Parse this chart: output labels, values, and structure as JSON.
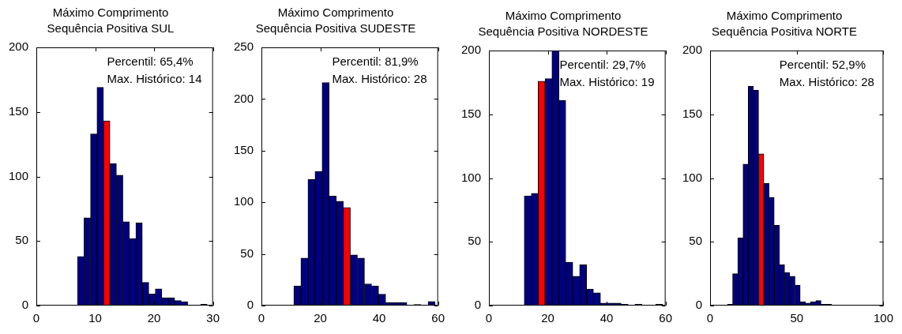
{
  "chart_data": [
    {
      "type": "histogram",
      "title": "Máximo Comprimento",
      "subtitle": "Sequência Positiva SUL",
      "bins": [
        7,
        8.1,
        9.2,
        10.3,
        11.4,
        12.5,
        13.6,
        14.7,
        15.8,
        16.9,
        18,
        19.1,
        20.2,
        21.3,
        22.4,
        23.5,
        24.6,
        25.7,
        26.8,
        27.9,
        29
      ],
      "values": [
        38,
        68,
        133,
        169,
        143,
        110,
        101,
        65,
        52,
        64,
        18,
        9,
        13,
        6,
        6,
        4,
        3,
        0,
        0,
        1
      ],
      "colors": [
        "#000080",
        "#000080",
        "#000080",
        "#000080",
        "#ff0000",
        "#000080",
        "#000080",
        "#000080",
        "#000080",
        "#000080",
        "#000080",
        "#000080",
        "#000080",
        "#000080",
        "#000080",
        "#000080",
        "#000080",
        "#000080",
        "#000080",
        "#000080"
      ],
      "xlim": [
        0,
        30
      ],
      "xticks": [
        0,
        10,
        20,
        30
      ],
      "ylim": [
        0,
        200
      ],
      "yticks": [
        0,
        50,
        100,
        150,
        200
      ],
      "annotations": [
        "Percentil: 65,4%",
        "Max. Histórico: 14"
      ]
    },
    {
      "type": "histogram",
      "title": "Máximo Comprimento",
      "subtitle": "Sequência Positiva SUDESTE",
      "bins": [
        11,
        13.4,
        15.8,
        18.2,
        20.6,
        23,
        25.4,
        27.8,
        30.2,
        32.6,
        35,
        37.4,
        39.8,
        42.2,
        44.6,
        47,
        49.4,
        51.8,
        54.2,
        56.6,
        59
      ],
      "values": [
        19,
        46,
        122,
        130,
        216,
        106,
        101,
        95,
        49,
        46,
        21,
        19,
        11,
        3,
        3,
        3,
        0,
        1,
        0,
        4
      ],
      "colors": [
        "#000080",
        "#000080",
        "#000080",
        "#000080",
        "#000080",
        "#000080",
        "#000080",
        "#ff0000",
        "#000080",
        "#000080",
        "#000080",
        "#000080",
        "#000080",
        "#000080",
        "#000080",
        "#000080",
        "#000080",
        "#000080",
        "#000080",
        "#000080"
      ],
      "xlim": [
        0,
        60
      ],
      "xticks": [
        0,
        20,
        40,
        60
      ],
      "ylim": [
        0,
        250
      ],
      "yticks": [
        0,
        50,
        100,
        150,
        200,
        250
      ],
      "annotations": [
        "Percentil: 81,9%",
        "Max. Histórico: 28"
      ]
    },
    {
      "type": "histogram",
      "title": "Máximo Comprimento",
      "subtitle": "Sequência Positiva NORDESTE",
      "bins": [
        12,
        14.4,
        16.7,
        19.1,
        21.4,
        23.8,
        26.1,
        28.5,
        30.8,
        33.2,
        35.5,
        37.9,
        40.2,
        42.6,
        44.9,
        47.3,
        49.6,
        52,
        54.3,
        56.7,
        59
      ],
      "values": [
        86,
        88,
        176,
        178,
        200,
        161,
        34,
        23,
        32,
        13,
        10,
        2,
        2,
        2,
        1,
        0,
        1,
        0,
        0,
        1
      ],
      "colors": [
        "#000080",
        "#000080",
        "#ff0000",
        "#000080",
        "#000080",
        "#000080",
        "#000080",
        "#000080",
        "#000080",
        "#000080",
        "#000080",
        "#000080",
        "#000080",
        "#000080",
        "#000080",
        "#000080",
        "#000080",
        "#000080",
        "#000080",
        "#000080"
      ],
      "xlim": [
        0,
        60
      ],
      "xticks": [
        0,
        20,
        40,
        60
      ],
      "ylim": [
        0,
        200
      ],
      "yticks": [
        0,
        50,
        100,
        150,
        200
      ],
      "annotations": [
        "Percentil: 29,7%",
        "Max. Histórico: 19"
      ]
    },
    {
      "type": "histogram",
      "title": "Máximo Comprimento",
      "subtitle": "Sequência Positiva NORTE",
      "bins": [
        10,
        13,
        16,
        19,
        22,
        25,
        28,
        31,
        34,
        37,
        40,
        43,
        46,
        49,
        52,
        55,
        58,
        61,
        64,
        67,
        70
      ],
      "values": [
        1,
        25,
        53,
        111,
        172,
        169,
        119,
        96,
        85,
        63,
        32,
        26,
        23,
        16,
        3,
        2,
        3,
        4,
        1,
        1
      ],
      "colors": [
        "#000080",
        "#000080",
        "#000080",
        "#000080",
        "#000080",
        "#000080",
        "#ff0000",
        "#000080",
        "#000080",
        "#000080",
        "#000080",
        "#000080",
        "#000080",
        "#000080",
        "#000080",
        "#000080",
        "#000080",
        "#000080",
        "#000080",
        "#000080"
      ],
      "xlim": [
        0,
        100
      ],
      "xticks": [
        0,
        50,
        100
      ],
      "ylim": [
        0,
        200
      ],
      "yticks": [
        0,
        50,
        100,
        150,
        200
      ],
      "annotations": [
        "Percentil: 52,9%",
        "Max. Histórico: 28"
      ]
    }
  ]
}
